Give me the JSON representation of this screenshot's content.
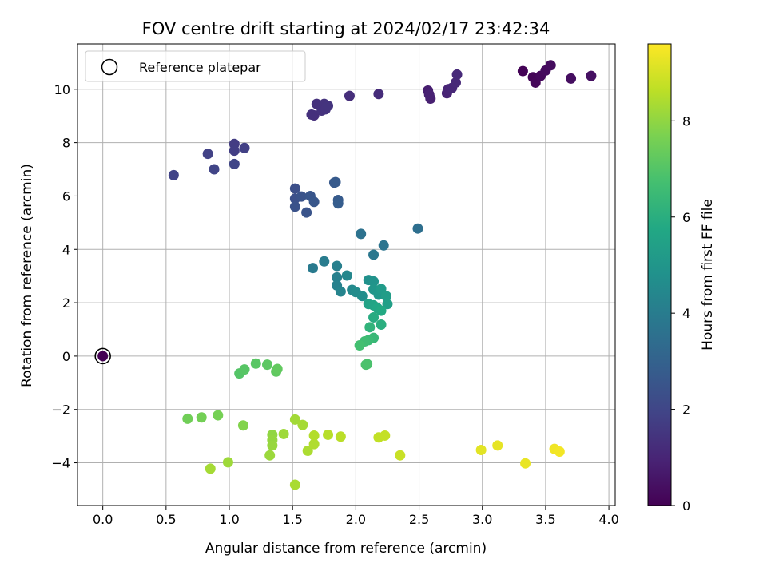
{
  "chart_data": {
    "type": "scatter",
    "title": "FOV centre drift starting at 2024/02/17 23:42:34",
    "xlabel": "Angular distance from reference (arcmin)",
    "ylabel": "Rotation from reference (arcmin)",
    "xlim": [
      -0.2,
      4.05
    ],
    "ylim": [
      -5.6,
      11.7
    ],
    "xticks": [
      "0.0",
      "0.5",
      "1.0",
      "1.5",
      "2.0",
      "2.5",
      "3.0",
      "3.5",
      "4.0"
    ],
    "yticks": [
      "−4",
      "−2",
      "0",
      "2",
      "4",
      "6",
      "8",
      "10"
    ],
    "grid": true,
    "legend": {
      "position": "top-left",
      "label": "Reference platepar"
    },
    "reference_point": {
      "x": 0.0,
      "y": 0.0
    },
    "colorbar": {
      "label": "Hours from first FF file",
      "range": [
        0,
        9.6
      ],
      "ticks": [
        "0",
        "2",
        "4",
        "6",
        "8"
      ],
      "colormap": "viridis"
    },
    "points": [
      [
        3.32,
        10.68,
        0.05
      ],
      [
        3.4,
        10.45,
        0.1
      ],
      [
        3.42,
        10.25,
        0.15
      ],
      [
        3.46,
        10.5,
        0.2
      ],
      [
        3.5,
        10.7,
        0.25
      ],
      [
        3.54,
        10.9,
        0.3
      ],
      [
        3.7,
        10.4,
        0.35
      ],
      [
        3.86,
        10.5,
        0.4
      ],
      [
        2.57,
        9.95,
        0.8
      ],
      [
        2.59,
        9.65,
        0.85
      ],
      [
        2.58,
        9.8,
        0.9
      ],
      [
        2.72,
        9.85,
        0.95
      ],
      [
        2.73,
        10.0,
        1.0
      ],
      [
        2.76,
        10.05,
        1.05
      ],
      [
        2.79,
        10.25,
        1.1
      ],
      [
        2.8,
        10.55,
        1.15
      ],
      [
        2.18,
        9.82,
        1.2
      ],
      [
        1.95,
        9.75,
        1.25
      ],
      [
        1.67,
        9.02,
        1.3
      ],
      [
        1.65,
        9.05,
        1.32
      ],
      [
        1.69,
        9.45,
        1.35
      ],
      [
        1.73,
        9.2,
        1.38
      ],
      [
        1.75,
        9.45,
        1.4
      ],
      [
        1.76,
        9.25,
        1.42
      ],
      [
        1.78,
        9.38,
        1.45
      ],
      [
        1.04,
        7.95,
        1.7
      ],
      [
        1.04,
        7.7,
        1.75
      ],
      [
        1.12,
        7.8,
        1.8
      ],
      [
        0.83,
        7.58,
        1.85
      ],
      [
        0.56,
        6.78,
        1.9
      ],
      [
        0.88,
        7.0,
        1.95
      ],
      [
        1.04,
        7.2,
        2.0
      ],
      [
        1.52,
        6.28,
        2.3
      ],
      [
        1.52,
        5.9,
        2.35
      ],
      [
        1.52,
        5.6,
        2.4
      ],
      [
        1.57,
        5.98,
        2.45
      ],
      [
        1.61,
        5.38,
        2.5
      ],
      [
        1.64,
        6.0,
        2.55
      ],
      [
        1.67,
        5.78,
        2.6
      ],
      [
        1.83,
        6.5,
        2.65
      ],
      [
        1.84,
        6.52,
        2.7
      ],
      [
        1.86,
        5.85,
        2.75
      ],
      [
        1.86,
        5.72,
        2.8
      ],
      [
        2.49,
        4.78,
        3.5
      ],
      [
        2.04,
        4.58,
        3.6
      ],
      [
        2.22,
        4.15,
        3.7
      ],
      [
        2.14,
        3.8,
        3.8
      ],
      [
        1.66,
        3.3,
        3.9
      ],
      [
        1.75,
        3.55,
        4.0
      ],
      [
        1.85,
        3.38,
        4.1
      ],
      [
        1.85,
        2.95,
        4.15
      ],
      [
        1.85,
        2.65,
        4.2
      ],
      [
        1.88,
        2.42,
        4.3
      ],
      [
        1.93,
        3.02,
        4.4
      ],
      [
        1.97,
        2.48,
        4.5
      ],
      [
        2.0,
        2.4,
        4.6
      ],
      [
        2.05,
        2.25,
        4.7
      ],
      [
        2.1,
        2.85,
        4.8
      ],
      [
        2.14,
        2.8,
        4.9
      ],
      [
        2.14,
        2.5,
        5.0
      ],
      [
        2.18,
        2.3,
        5.1
      ],
      [
        2.2,
        2.52,
        5.2
      ],
      [
        2.24,
        2.25,
        5.3
      ],
      [
        2.25,
        1.95,
        5.4
      ],
      [
        2.1,
        1.95,
        5.5
      ],
      [
        2.14,
        1.9,
        5.6
      ],
      [
        2.17,
        1.8,
        5.7
      ],
      [
        2.2,
        1.7,
        5.8
      ],
      [
        2.14,
        1.45,
        5.9
      ],
      [
        2.2,
        1.18,
        6.0
      ],
      [
        2.11,
        1.08,
        6.2
      ],
      [
        2.14,
        0.68,
        6.4
      ],
      [
        2.1,
        0.6,
        6.5
      ],
      [
        2.07,
        0.55,
        6.6
      ],
      [
        2.03,
        0.4,
        6.7
      ],
      [
        2.09,
        -0.3,
        6.8
      ],
      [
        2.08,
        -0.32,
        6.85
      ],
      [
        1.08,
        -0.65,
        7.0
      ],
      [
        1.12,
        -0.5,
        7.05
      ],
      [
        1.21,
        -0.28,
        7.1
      ],
      [
        1.3,
        -0.32,
        7.15
      ],
      [
        1.37,
        -0.58,
        7.2
      ],
      [
        1.38,
        -0.48,
        7.25
      ],
      [
        0.67,
        -2.35,
        7.5
      ],
      [
        0.78,
        -2.3,
        7.55
      ],
      [
        0.91,
        -2.22,
        7.6
      ],
      [
        1.11,
        -2.6,
        7.8
      ],
      [
        0.99,
        -3.98,
        8.2
      ],
      [
        0.85,
        -4.22,
        8.3
      ],
      [
        1.34,
        -2.95,
        8.0
      ],
      [
        1.34,
        -3.15,
        8.05
      ],
      [
        1.34,
        -3.35,
        8.1
      ],
      [
        1.32,
        -3.72,
        8.15
      ],
      [
        1.43,
        -2.92,
        8.2
      ],
      [
        1.52,
        -2.38,
        8.25
      ],
      [
        1.58,
        -2.58,
        8.3
      ],
      [
        1.52,
        -4.82,
        8.35
      ],
      [
        1.62,
        -3.55,
        8.4
      ],
      [
        1.67,
        -3.3,
        8.45
      ],
      [
        1.67,
        -2.98,
        8.5
      ],
      [
        1.78,
        -2.95,
        8.55
      ],
      [
        1.88,
        -3.02,
        8.6
      ],
      [
        2.18,
        -3.05,
        8.7
      ],
      [
        2.23,
        -2.98,
        8.75
      ],
      [
        2.35,
        -3.72,
        8.8
      ],
      [
        2.99,
        -3.52,
        9.2
      ],
      [
        3.12,
        -3.35,
        9.25
      ],
      [
        3.34,
        -4.02,
        9.3
      ],
      [
        3.57,
        -3.48,
        9.4
      ],
      [
        3.61,
        -3.58,
        9.45
      ]
    ]
  }
}
